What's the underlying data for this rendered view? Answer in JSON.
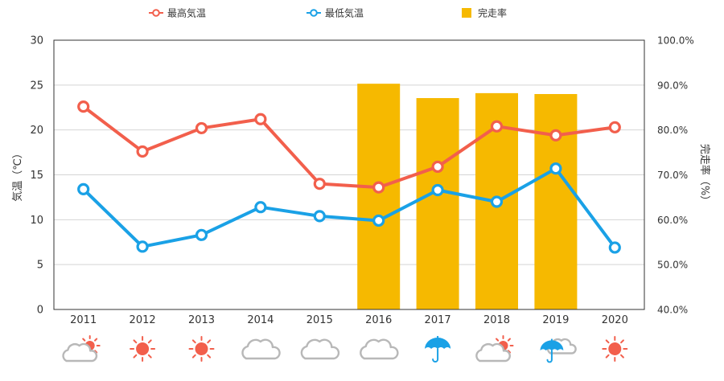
{
  "chart_data": {
    "type": "combo",
    "legend": {
      "placement": "top-center",
      "items": [
        {
          "key": "max",
          "label": "最高気温",
          "color": "#f25f4c",
          "marker": "open-circle-line"
        },
        {
          "key": "min",
          "label": "最低気温",
          "color": "#1aa1e6",
          "marker": "open-circle-line"
        },
        {
          "key": "rate",
          "label": "完走率",
          "color": "#f6b900",
          "marker": "square"
        }
      ]
    },
    "y_left": {
      "label": "気温（℃）",
      "ylim": [
        0,
        30
      ],
      "ticks": [
        0,
        5,
        10,
        15,
        20,
        25,
        30
      ],
      "tick_labels": [
        "0",
        "5",
        "10",
        "15",
        "20",
        "25",
        "30"
      ]
    },
    "y_right": {
      "label": "完走率（%）",
      "ylim": [
        40,
        100
      ],
      "ticks": [
        40,
        50,
        60,
        70,
        80,
        90,
        100
      ],
      "tick_labels": [
        "40.0%",
        "50.0%",
        "60.0%",
        "70.0%",
        "80.0%",
        "90.0%",
        "100.0%"
      ]
    },
    "grid": true,
    "categories": [
      "2011",
      "2012",
      "2013",
      "2014",
      "2015",
      "2016",
      "2017",
      "2018",
      "2019",
      "2020"
    ],
    "series": [
      {
        "key": "max",
        "name": "最高気温",
        "type": "line",
        "axis": "left",
        "color": "#f25f4c",
        "values": [
          22.6,
          17.6,
          20.2,
          21.2,
          14.0,
          13.6,
          15.9,
          20.4,
          19.4,
          20.3
        ]
      },
      {
        "key": "min",
        "name": "最低気温",
        "type": "line",
        "axis": "left",
        "color": "#1aa1e6",
        "values": [
          13.4,
          7.0,
          8.3,
          11.4,
          10.4,
          9.9,
          13.3,
          12.0,
          15.7,
          6.9
        ]
      },
      {
        "key": "rate",
        "name": "完走率",
        "type": "bar",
        "axis": "right",
        "color": "#f6b900",
        "values": [
          null,
          null,
          null,
          null,
          null,
          90.3,
          87.1,
          88.2,
          88.0,
          null
        ]
      }
    ],
    "weather_icons": [
      "cloud-sun-icon",
      "sun-icon",
      "sun-icon",
      "cloud-icon",
      "cloud-icon",
      "cloud-icon",
      "umbrella-icon",
      "cloud-sun-icon",
      "umbrella-cloud-icon",
      "sun-icon"
    ]
  }
}
